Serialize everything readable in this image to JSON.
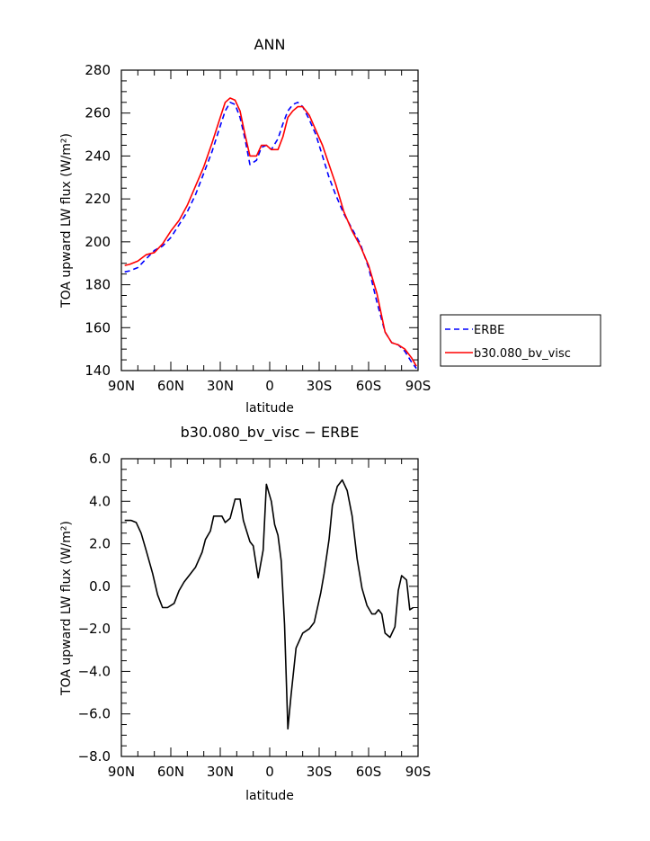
{
  "chart_data": [
    {
      "type": "line",
      "title": "ANN",
      "xlabel": "latitude",
      "ylabel": "TOA upward LW flux (W/m²)",
      "xlim": [
        90,
        -90
      ],
      "ylim": [
        140,
        280
      ],
      "xticks": [
        90,
        60,
        30,
        0,
        -30,
        -60,
        -90
      ],
      "xtick_labels": [
        "90N",
        "60N",
        "30N",
        "0",
        "30S",
        "60S",
        "90S"
      ],
      "yticks": [
        140,
        160,
        180,
        200,
        220,
        240,
        260,
        280
      ],
      "ytick_labels": [
        "140",
        "160",
        "180",
        "200",
        "220",
        "240",
        "260",
        "280"
      ],
      "grid": false,
      "legend_position": "outside-right",
      "series": [
        {
          "name": "ERBE",
          "color": "#0000ff",
          "dash": "dashed",
          "x": [
            88,
            85,
            80,
            75,
            70,
            65,
            60,
            55,
            50,
            45,
            40,
            35,
            30,
            27,
            24,
            21,
            18,
            15,
            12,
            8,
            5,
            2,
            -1,
            -5,
            -8,
            -11,
            -14,
            -17,
            -20,
            -24,
            -28,
            -32,
            -36,
            -40,
            -45,
            -50,
            -55,
            -60,
            -65,
            -70,
            -74,
            -78,
            -82,
            -86,
            -89
          ],
          "y": [
            186,
            186.5,
            188,
            192,
            196,
            198,
            202,
            208,
            214,
            222,
            232,
            242,
            254,
            261,
            265,
            264,
            258,
            248,
            236,
            238,
            244,
            245,
            243,
            248,
            255,
            261,
            264,
            265,
            263,
            257,
            250,
            240,
            230,
            222,
            213,
            206,
            199,
            188,
            172,
            158,
            153,
            152,
            149,
            144,
            141
          ]
        },
        {
          "name": "b30.080_bv_visc",
          "color": "#ff0000",
          "dash": "solid",
          "x": [
            88,
            85,
            80,
            75,
            70,
            65,
            60,
            55,
            50,
            45,
            40,
            35,
            30,
            27,
            24,
            21,
            18,
            15,
            12,
            8,
            5,
            2,
            -1,
            -5,
            -8,
            -11,
            -14,
            -17,
            -20,
            -24,
            -28,
            -32,
            -36,
            -40,
            -45,
            -50,
            -55,
            -60,
            -65,
            -70,
            -74,
            -78,
            -82,
            -86,
            -89
          ],
          "y": [
            189,
            189.5,
            191,
            194,
            195,
            199,
            205,
            210,
            217,
            226,
            235,
            246,
            258,
            265,
            267,
            266,
            261,
            250,
            240,
            240,
            245,
            245,
            243,
            243,
            249,
            258,
            261,
            263,
            263,
            259,
            252,
            245,
            236,
            227,
            214,
            205,
            198,
            189,
            176,
            158,
            153,
            152,
            150,
            146,
            142
          ]
        }
      ],
      "legend_entries": [
        "ERBE",
        "b30.080_bv_visc"
      ]
    },
    {
      "type": "line",
      "title": "b30.080_bv_visc − ERBE",
      "xlabel": "latitude",
      "ylabel": "TOA upward LW flux (W/m²)",
      "xlim": [
        90,
        -90
      ],
      "ylim": [
        -8,
        6
      ],
      "xticks": [
        90,
        60,
        30,
        0,
        -30,
        -60,
        -90
      ],
      "xtick_labels": [
        "90N",
        "60N",
        "30N",
        "0",
        "30S",
        "60S",
        "90S"
      ],
      "yticks": [
        -8,
        -6,
        -4,
        -2,
        0,
        2,
        4,
        6
      ],
      "ytick_labels": [
        "−8.0",
        "−6.0",
        "−4.0",
        "−2.0",
        "0.0",
        "2.0",
        "4.0",
        "6.0"
      ],
      "grid": false,
      "series": [
        {
          "color": "#000000",
          "x": [
            88,
            84,
            81,
            78,
            75,
            71,
            68,
            65,
            62,
            58,
            55,
            52,
            48,
            45,
            41,
            39,
            36,
            34,
            31,
            29,
            27,
            24,
            21,
            18,
            16,
            14,
            12,
            10,
            7,
            4,
            2,
            -1,
            -3,
            -5,
            -7,
            -9,
            -11,
            -13,
            -16,
            -20,
            -24,
            -27,
            -31,
            -33,
            -36,
            -38,
            -41,
            -44,
            -47,
            -50,
            -53,
            -56,
            -59,
            -62,
            -64,
            -66,
            -68,
            -70,
            -73,
            -76,
            -78,
            -80,
            -83,
            -85,
            -87
          ],
          "y": [
            3.1,
            3.1,
            3.0,
            2.5,
            1.7,
            0.6,
            -0.4,
            -1.0,
            -1.0,
            -0.8,
            -0.2,
            0.2,
            0.6,
            0.9,
            1.6,
            2.2,
            2.6,
            3.3,
            3.3,
            3.3,
            3.0,
            3.2,
            4.1,
            4.1,
            3.1,
            2.6,
            2.1,
            1.9,
            0.4,
            1.7,
            4.8,
            4.0,
            2.9,
            2.4,
            1.2,
            -1.8,
            -6.7,
            -5.1,
            -2.9,
            -2.2,
            -2.0,
            -1.7,
            -0.3,
            0.6,
            2.2,
            3.8,
            4.7,
            5.0,
            4.5,
            3.3,
            1.3,
            -0.1,
            -0.9,
            -1.3,
            -1.3,
            -1.1,
            -1.3,
            -2.2,
            -2.4,
            -1.9,
            -0.2,
            0.5,
            0.3,
            -1.1,
            -1.0
          ]
        }
      ]
    }
  ]
}
